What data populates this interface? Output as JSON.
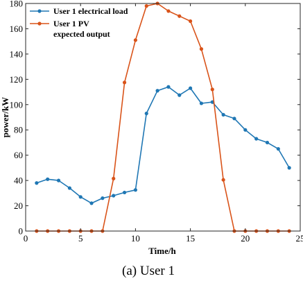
{
  "chart_data": {
    "type": "line",
    "xlabel": "Time/h",
    "ylabel": "power/kW",
    "xlim": [
      0,
      25
    ],
    "ylim": [
      0,
      180
    ],
    "xticks": [
      "0",
      "5",
      "10",
      "15",
      "20",
      "25"
    ],
    "yticks": [
      "0",
      "20",
      "40",
      "60",
      "80",
      "100",
      "120",
      "140",
      "160",
      "180"
    ],
    "grid": false,
    "legend_position": "top-left",
    "x": [
      1,
      2,
      3,
      4,
      5,
      6,
      7,
      8,
      9,
      10,
      11,
      12,
      13,
      14,
      15,
      16,
      17,
      18,
      19,
      20,
      21,
      22,
      23,
      24
    ],
    "series": [
      {
        "name": "User 1 electrical load",
        "color": "#1f77b4",
        "values": [
          38,
          41,
          40,
          34,
          27,
          22,
          26,
          28,
          30.5,
          32.5,
          93,
          111,
          114,
          107.5,
          113,
          101,
          102,
          92,
          89,
          80,
          73,
          70,
          65,
          50
        ]
      },
      {
        "name_lines": [
          "User 1 PV",
          "expected output"
        ],
        "color": "#d95319",
        "values": [
          0,
          0,
          0,
          0,
          0,
          0,
          0,
          41.5,
          117.5,
          151,
          178,
          180,
          174,
          170,
          166,
          144,
          112,
          40.5,
          0,
          0,
          0,
          0,
          0,
          0
        ]
      }
    ]
  },
  "caption": "(a) User 1"
}
